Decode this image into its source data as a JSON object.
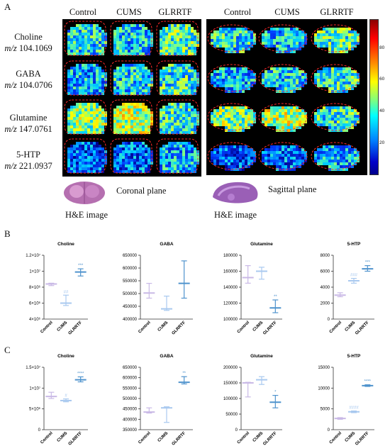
{
  "panel_a": {
    "letter": "A",
    "columns_coronal": [
      "Control",
      "CUMS",
      "GLRRTF"
    ],
    "columns_sagittal": [
      "Control",
      "CUMS",
      "GLRRTF"
    ],
    "rows": [
      {
        "name": "Choline",
        "mz_prefix": "m/z",
        "mz": "104.1069"
      },
      {
        "name": "GABA",
        "mz_prefix": "m/z",
        "mz": "104.0706"
      },
      {
        "name": "Glutamine",
        "mz_prefix": "m/z",
        "mz": "147.0761"
      },
      {
        "name": "5-HTP",
        "mz_prefix": "m/z",
        "mz": "221.0937"
      }
    ],
    "colorbar_ticks": [
      "80",
      "60",
      "40",
      "20"
    ],
    "coronal_plane": "Coronal plane",
    "sagittal_plane": "Sagittal plane",
    "he_label_left": "H&E image",
    "he_label_right": "H&E image"
  },
  "panel_b": {
    "letter": "B"
  },
  "panel_c": {
    "letter": "C"
  },
  "chart_data": [
    {
      "panel": "B",
      "type": "box",
      "title": "Choline",
      "categories": [
        "Control",
        "CUMS",
        "GLRRTF"
      ],
      "yticks": [
        "4×10⁶",
        "6×10⁶",
        "8×10⁶",
        "1×10⁷",
        "1.2×10⁷"
      ],
      "ylim": [
        4000000,
        12000000
      ],
      "series": [
        {
          "values": [
            [
              8200000,
              8400000,
              8500000
            ],
            [
              5700000,
              6000000,
              7000000
            ],
            [
              9400000,
              9900000,
              10300000
            ]
          ]
        }
      ],
      "annotations": [
        "",
        "##",
        "***"
      ]
    },
    {
      "panel": "B",
      "type": "box",
      "title": "GABA",
      "categories": [
        "Control",
        "CUMS",
        "GLRRTF"
      ],
      "yticks": [
        "400000",
        "450000",
        "500000",
        "550000",
        "600000",
        "650000"
      ],
      "ylim": [
        400000,
        650000
      ],
      "series": [
        {
          "values": [
            [
              482000,
              502000,
              540000
            ],
            [
              434000,
              440000,
              490000
            ],
            [
              482000,
              540000,
              628000
            ]
          ]
        }
      ],
      "annotations": [
        "",
        "",
        ""
      ]
    },
    {
      "panel": "B",
      "type": "box",
      "title": "Glutamine",
      "categories": [
        "Control",
        "CUMS",
        "GLRRTF"
      ],
      "yticks": [
        "100000",
        "120000",
        "140000",
        "160000",
        "180000"
      ],
      "ylim": [
        100000,
        180000
      ],
      "series": [
        {
          "values": [
            [
              145000,
              152000,
              167000
            ],
            [
              150000,
              160000,
              165000
            ],
            [
              108000,
              114000,
              124000
            ]
          ]
        }
      ],
      "annotations": [
        "",
        "",
        "**"
      ]
    },
    {
      "panel": "B",
      "type": "box",
      "title": "5-HTP",
      "categories": [
        "Control",
        "CUMS",
        "GLRRTF"
      ],
      "yticks": [
        "0",
        "2000",
        "4000",
        "6000",
        "8000"
      ],
      "ylim": [
        0,
        8000
      ],
      "series": [
        {
          "values": [
            [
              2800,
              3000,
              3300
            ],
            [
              4500,
              4800,
              5100
            ],
            [
              6000,
              6300,
              6700
            ]
          ]
        }
      ],
      "annotations": [
        "",
        "###",
        "***"
      ]
    },
    {
      "panel": "C",
      "type": "box",
      "title": "Choline",
      "categories": [
        "Control",
        "CUMS",
        "GLRRTF"
      ],
      "yticks": [
        "0",
        "5×10⁶",
        "1×10⁷",
        "1.5×10⁷"
      ],
      "ylim": [
        0,
        15000000
      ],
      "series": [
        {
          "values": [
            [
              7500000,
              8000000,
              9000000
            ],
            [
              6700000,
              7000000,
              7400000
            ],
            [
              11500000,
              12000000,
              12700000
            ]
          ]
        }
      ],
      "annotations": [
        "",
        "#",
        "****"
      ]
    },
    {
      "panel": "C",
      "type": "box",
      "title": "GABA",
      "categories": [
        "Control",
        "CUMS",
        "GLRRTF"
      ],
      "yticks": [
        "350000",
        "400000",
        "450000",
        "500000",
        "550000",
        "600000",
        "650000"
      ],
      "ylim": [
        350000,
        650000
      ],
      "series": [
        {
          "values": [
            [
              430000,
              435000,
              455000
            ],
            [
              385000,
              455000,
              460000
            ],
            [
              570000,
              578000,
              605000
            ]
          ]
        }
      ],
      "annotations": [
        "",
        "",
        "**"
      ]
    },
    {
      "panel": "C",
      "type": "box",
      "title": "Glutamine",
      "categories": [
        "Control",
        "CUMS",
        "GLRRTF"
      ],
      "yticks": [
        "0",
        "50000",
        "100000",
        "150000",
        "200000"
      ],
      "ylim": [
        0,
        200000
      ],
      "series": [
        {
          "values": [
            [
              105000,
              150000,
              152000
            ],
            [
              145000,
              160000,
              170000
            ],
            [
              70000,
              88000,
              110000
            ]
          ]
        }
      ],
      "annotations": [
        "",
        "",
        "*"
      ]
    },
    {
      "panel": "C",
      "type": "box",
      "title": "5-HTP",
      "categories": [
        "Control",
        "CUMS",
        "GLRRTF"
      ],
      "yticks": [
        "0",
        "5000",
        "10000",
        "15000"
      ],
      "ylim": [
        0,
        15000
      ],
      "series": [
        {
          "values": [
            [
              2500,
              2700,
              2900
            ],
            [
              4100,
              4300,
              4500
            ],
            [
              10400,
              10600,
              10800
            ]
          ]
        }
      ],
      "annotations": [
        "",
        "####",
        "****"
      ]
    }
  ],
  "colors": {
    "light": "#c9b9e6",
    "mid": "#a9c9ef",
    "dark": "#4f93cd"
  }
}
